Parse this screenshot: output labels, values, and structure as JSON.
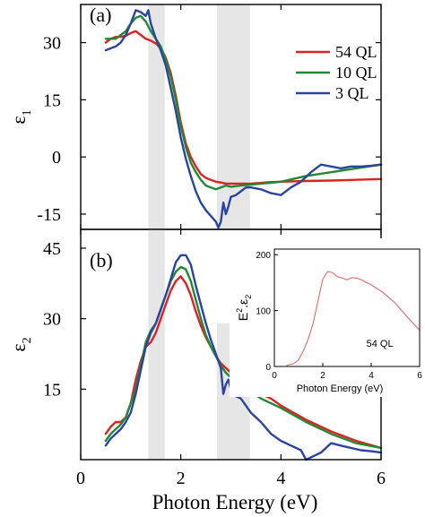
{
  "chart_data": [
    {
      "type": "line",
      "panel_label": "(a)",
      "xlabel": "",
      "ylabel_main": "ε",
      "ylabel_sub": "1",
      "xlim": [
        0,
        6
      ],
      "ylim": [
        -19,
        40
      ],
      "yticks": [
        "30",
        "15",
        "0",
        "-15"
      ],
      "ytick_values": [
        30,
        15,
        0,
        -15
      ],
      "xticks": [
        0,
        2,
        4,
        6
      ],
      "shaded_x_ranges": [
        [
          1.35,
          1.68
        ],
        [
          2.72,
          3.38
        ]
      ],
      "series": [
        {
          "name": "54 QL",
          "color": "#dd2222",
          "x": [
            0.5,
            0.6,
            0.7,
            0.8,
            0.9,
            1.0,
            1.1,
            1.2,
            1.3,
            1.4,
            1.5,
            1.6,
            1.7,
            1.8,
            1.9,
            2.0,
            2.1,
            2.2,
            2.3,
            2.4,
            2.5,
            2.6,
            2.7,
            2.8,
            2.9,
            3.0,
            3.2,
            3.4,
            3.6,
            3.8,
            4.0,
            4.5,
            5.0,
            5.5,
            6.0
          ],
          "y": [
            30.0,
            31.0,
            31.5,
            31.5,
            31.8,
            32.5,
            33.0,
            32.0,
            31.0,
            30.5,
            29.8,
            28.5,
            26.0,
            22.0,
            16.0,
            9.0,
            3.5,
            0.0,
            -2.5,
            -4.5,
            -5.5,
            -6.0,
            -6.5,
            -6.7,
            -7.0,
            -7.0,
            -7.0,
            -7.0,
            -6.8,
            -6.6,
            -6.5,
            -6.3,
            -6.2,
            -6.0,
            -5.8
          ]
        },
        {
          "name": "10 QL",
          "color": "#228833",
          "x": [
            0.5,
            0.6,
            0.7,
            0.8,
            0.9,
            1.0,
            1.1,
            1.2,
            1.3,
            1.4,
            1.5,
            1.6,
            1.7,
            1.8,
            1.9,
            2.0,
            2.1,
            2.2,
            2.3,
            2.4,
            2.5,
            2.6,
            2.7,
            2.8,
            2.9,
            3.0,
            3.2,
            3.4,
            3.6,
            3.8,
            4.0,
            4.5,
            5.0,
            5.5,
            6.0
          ],
          "y": [
            31.0,
            31.0,
            31.0,
            32.0,
            33.0,
            35.0,
            36.5,
            37.0,
            35.5,
            33.0,
            31.0,
            29.0,
            25.5,
            21.0,
            15.0,
            8.0,
            2.5,
            -1.5,
            -4.0,
            -6.0,
            -7.5,
            -8.0,
            -8.5,
            -8.0,
            -7.5,
            -7.8,
            -7.5,
            -7.3,
            -7.0,
            -6.8,
            -6.5,
            -5.0,
            -4.0,
            -3.0,
            -2.0
          ]
        },
        {
          "name": "3 QL",
          "color": "#2a45a0",
          "x": [
            0.5,
            0.6,
            0.7,
            0.8,
            0.9,
            1.0,
            1.1,
            1.2,
            1.3,
            1.35,
            1.4,
            1.5,
            1.6,
            1.7,
            1.8,
            1.9,
            2.0,
            2.1,
            2.2,
            2.3,
            2.4,
            2.5,
            2.6,
            2.7,
            2.75,
            2.8,
            2.85,
            2.9,
            2.95,
            3.0,
            3.1,
            3.2,
            3.3,
            3.4,
            3.6,
            3.8,
            4.0,
            4.2,
            4.4,
            4.6,
            4.8,
            5.0,
            5.2,
            5.4,
            5.6,
            5.8,
            6.0
          ],
          "y": [
            28.0,
            28.5,
            29.0,
            30.0,
            32.0,
            35.0,
            38.5,
            38.0,
            37.0,
            38.5,
            35.0,
            31.0,
            28.0,
            24.0,
            18.0,
            12.0,
            5.0,
            -0.5,
            -5.0,
            -9.0,
            -12.0,
            -14.0,
            -15.5,
            -17.0,
            -18.5,
            -17.0,
            -12.0,
            -15.0,
            -13.0,
            -10.5,
            -10.0,
            -9.0,
            -8.0,
            -8.0,
            -8.5,
            -9.5,
            -10.0,
            -8.0,
            -6.5,
            -4.0,
            -2.0,
            -2.5,
            -3.0,
            -2.5,
            -2.5,
            -2.3,
            -2.0
          ]
        }
      ]
    },
    {
      "type": "line",
      "panel_label": "(b)",
      "xlabel": "Photon Energy (eV)",
      "ylabel_main": "ε",
      "ylabel_sub": "2",
      "xlim": [
        0,
        6
      ],
      "ylim": [
        0,
        49
      ],
      "yticks": [
        "45",
        "30",
        "15"
      ],
      "ytick_values": [
        45,
        30,
        15
      ],
      "xticks": [
        0,
        2,
        4,
        6
      ],
      "xtick_labels": [
        "0",
        "2",
        "4",
        "6"
      ],
      "shaded_x_ranges": [
        [
          1.35,
          1.68
        ],
        [
          2.72,
          3.38
        ]
      ],
      "shaded_second_ymax": 29,
      "series": [
        {
          "name": "54 QL",
          "color": "#dd2222",
          "x": [
            0.5,
            0.6,
            0.7,
            0.8,
            0.9,
            1.0,
            1.1,
            1.2,
            1.3,
            1.4,
            1.5,
            1.6,
            1.7,
            1.8,
            1.9,
            2.0,
            2.1,
            2.2,
            2.3,
            2.4,
            2.5,
            2.6,
            2.7,
            2.8,
            2.9,
            3.0,
            3.2,
            3.4,
            3.6,
            3.8,
            4.0,
            4.5,
            5.0,
            5.5,
            6.0
          ],
          "y": [
            5.5,
            7.0,
            8.0,
            8.0,
            9.0,
            12.0,
            17.0,
            21.0,
            24.0,
            25.0,
            27.0,
            30.0,
            33.0,
            36.0,
            38.0,
            39.0,
            37.5,
            35.0,
            31.5,
            28.5,
            26.0,
            24.0,
            22.0,
            20.5,
            19.5,
            18.5,
            17.0,
            15.5,
            14.0,
            13.0,
            11.5,
            8.5,
            6.0,
            4.0,
            2.5
          ]
        },
        {
          "name": "10 QL",
          "color": "#228833",
          "x": [
            0.5,
            0.6,
            0.7,
            0.8,
            0.9,
            1.0,
            1.1,
            1.2,
            1.3,
            1.4,
            1.5,
            1.6,
            1.7,
            1.8,
            1.9,
            2.0,
            2.1,
            2.2,
            2.3,
            2.4,
            2.5,
            2.6,
            2.7,
            2.8,
            2.9,
            3.0,
            3.2,
            3.4,
            3.6,
            3.8,
            4.0,
            4.5,
            5.0,
            5.5,
            6.0
          ],
          "y": [
            4.0,
            5.5,
            6.5,
            7.5,
            9.0,
            12.0,
            15.0,
            20.0,
            25.0,
            27.5,
            29.0,
            32.0,
            35.0,
            38.0,
            40.0,
            41.0,
            40.5,
            38.0,
            34.0,
            30.0,
            26.5,
            24.0,
            22.0,
            20.0,
            18.5,
            17.5,
            16.0,
            14.5,
            13.0,
            12.0,
            11.0,
            8.0,
            5.5,
            3.5,
            2.5
          ]
        },
        {
          "name": "3 QL",
          "color": "#2a45a0",
          "x": [
            0.5,
            0.6,
            0.7,
            0.8,
            0.9,
            1.0,
            1.1,
            1.2,
            1.3,
            1.4,
            1.5,
            1.6,
            1.7,
            1.8,
            1.9,
            2.0,
            2.1,
            2.2,
            2.3,
            2.4,
            2.5,
            2.6,
            2.7,
            2.8,
            2.85,
            2.9,
            2.95,
            3.0,
            3.1,
            3.2,
            3.4,
            3.6,
            3.8,
            4.0,
            4.2,
            4.4,
            4.5,
            4.6,
            4.8,
            5.0,
            5.2,
            5.4,
            5.6,
            5.8,
            6.0
          ],
          "y": [
            3.0,
            4.5,
            5.5,
            6.5,
            8.0,
            10.0,
            14.0,
            19.0,
            24.0,
            27.0,
            29.0,
            32.0,
            35.0,
            38.5,
            42.0,
            43.5,
            43.5,
            41.5,
            37.0,
            33.0,
            29.0,
            25.5,
            22.5,
            19.5,
            14.0,
            16.0,
            17.0,
            15.0,
            13.5,
            13.0,
            10.0,
            8.0,
            5.5,
            4.0,
            3.0,
            2.0,
            0.0,
            0.5,
            1.5,
            3.5,
            3.0,
            2.5,
            2.0,
            1.8,
            1.5
          ]
        }
      ]
    },
    {
      "type": "line",
      "inset": true,
      "xlabel": "Photon Energy (eV)",
      "ylabel_main": "E",
      "ylabel_sup": "2",
      "ylabel_rest": ".ε",
      "ylabel_sub": "2",
      "xlim": [
        0,
        6
      ],
      "ylim": [
        0,
        210
      ],
      "yticks": [
        "200",
        "100",
        "0"
      ],
      "ytick_values": [
        200,
        100,
        0
      ],
      "xticks": [
        "0",
        "2",
        "4",
        "6"
      ],
      "xtick_values": [
        0,
        2,
        4,
        6
      ],
      "annotation": "54 QL",
      "series": [
        {
          "name": "54 QL",
          "color": "#ee6666",
          "x": [
            0.5,
            0.6,
            0.8,
            1.0,
            1.2,
            1.4,
            1.6,
            1.8,
            2.0,
            2.2,
            2.4,
            2.6,
            2.8,
            3.0,
            3.2,
            3.4,
            3.6,
            3.8,
            4.0,
            4.5,
            5.0,
            5.5,
            6.0
          ],
          "y": [
            1.5,
            3.0,
            5.0,
            12.0,
            28.0,
            49.0,
            77.0,
            117.0,
            156.0,
            170.0,
            168.0,
            161.0,
            158.0,
            155.0,
            159.0,
            158.0,
            155.0,
            150.0,
            146.0,
            132.0,
            113.0,
            88.0,
            65.0
          ]
        }
      ]
    }
  ],
  "legend": {
    "placement": "top-right",
    "items": [
      {
        "label": "54 QL",
        "color": "#dd2222"
      },
      {
        "label": "10 QL",
        "color": "#228833"
      },
      {
        "label": "3 QL",
        "color": "#2a45a0"
      }
    ]
  },
  "colors": {
    "shade": "#e6e6e6",
    "axis": "#000000"
  }
}
